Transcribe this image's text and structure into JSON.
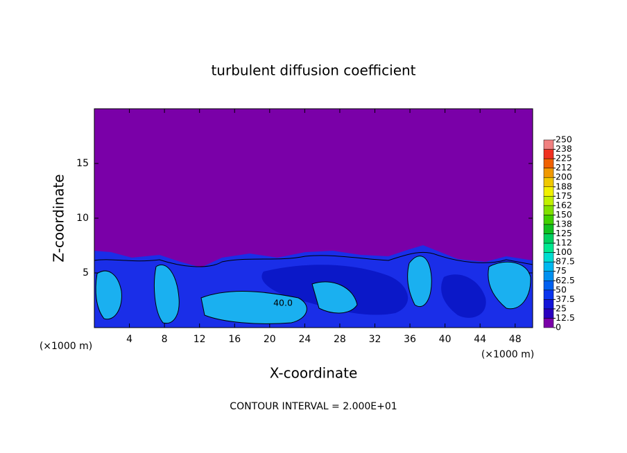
{
  "chart_data": {
    "type": "contour",
    "title": "turbulent diffusion coefficient",
    "xlabel": "X-coordinate",
    "ylabel": "Z-coordinate",
    "x_unit_left": "(×1000 m)",
    "x_unit_right": "(×1000 m)",
    "footer": "CONTOUR INTERVAL = 2.000E+01",
    "contour_labels": [
      "40.0"
    ],
    "xlim": [
      0,
      50
    ],
    "ylim": [
      0,
      20
    ],
    "xticks": [
      4,
      8,
      12,
      16,
      20,
      24,
      28,
      32,
      36,
      40,
      44,
      48
    ],
    "yticks": [
      5,
      10,
      15
    ],
    "colorbar": {
      "ticks": [
        0,
        12.5,
        25,
        37.5,
        50,
        62.5,
        75,
        87.5,
        100,
        {
          "value": 112.5,
          "label": "112"
        },
        125,
        {
          "value": 137.5,
          "label": "138"
        },
        150,
        {
          "value": 162.5,
          "label": "162"
        },
        175,
        {
          "value": 187.5,
          "label": "188"
        },
        200,
        {
          "value": 212.5,
          "label": "212"
        },
        225,
        {
          "value": 237.5,
          "label": "238"
        },
        250
      ],
      "colors": [
        "#7a00a8",
        "#2a00c0",
        "#1414d8",
        "#0a34ee",
        "#0060f0",
        "#0090f0",
        "#00b8f0",
        "#00dcd0",
        "#00e890",
        "#00d060",
        "#10c020",
        "#40d000",
        "#80e000",
        "#c0f000",
        "#f0f000",
        "#f0c800",
        "#f09800",
        "#f06000",
        "#f03020",
        "#f08080"
      ]
    }
  }
}
